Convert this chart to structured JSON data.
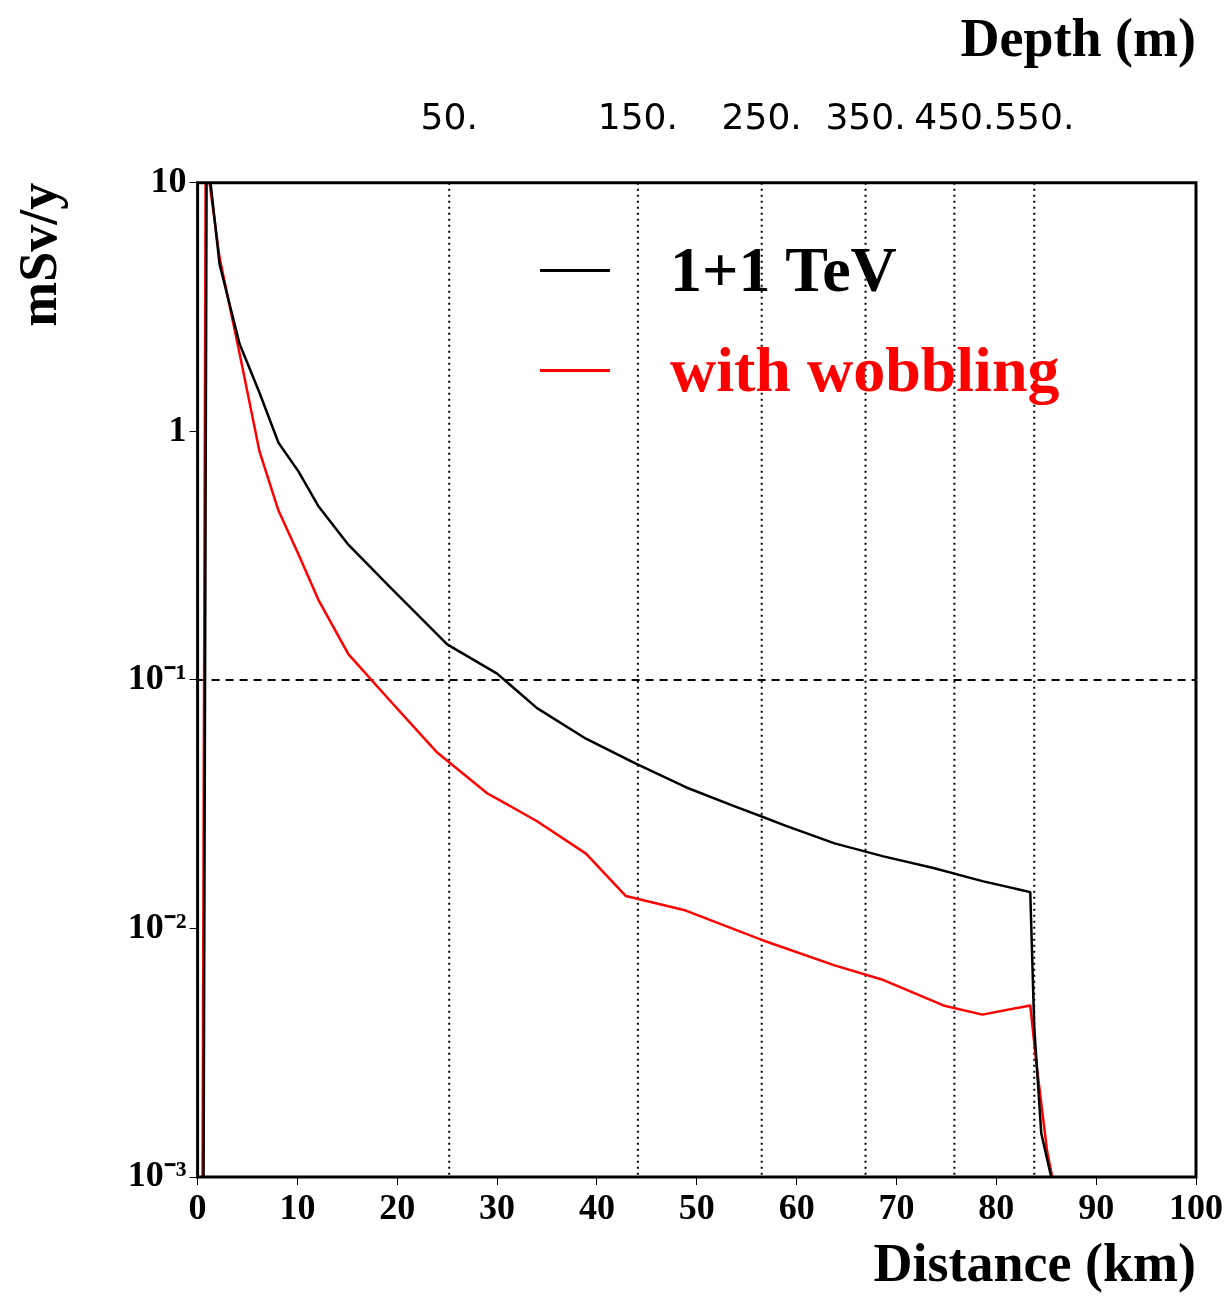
{
  "chart_data": {
    "type": "line",
    "xlabel": "Distance (km)",
    "ylabel": "mSv/y",
    "x2label": "Depth (m)",
    "log": "y",
    "grid": false,
    "legend": "top right",
    "line_style": "solid",
    "marker": "none",
    "xlim": [
      0,
      100
    ],
    "xticks": [
      0,
      10,
      20,
      30,
      40,
      50,
      60,
      70,
      80,
      90,
      100
    ],
    "ylim": [
      0.001,
      10
    ],
    "yticks": [
      {
        "value": 10,
        "label": "10"
      },
      {
        "value": 1,
        "label": "1"
      },
      {
        "value": 0.1,
        "label": "10⁻¹"
      },
      {
        "value": 0.01,
        "label": "10⁻²"
      },
      {
        "value": 0.001,
        "label": "10⁻³"
      }
    ],
    "ref_lines": [
      {
        "axis": "y",
        "value": 0.1,
        "color": "#000000",
        "line_style": "dashed"
      },
      {
        "axis": "x",
        "value": 25.2,
        "color": "#000000",
        "line_style": "dotted"
      },
      {
        "axis": "x",
        "value": 44.1,
        "color": "#000000",
        "line_style": "dotted"
      },
      {
        "axis": "x",
        "value": 56.5,
        "color": "#000000",
        "line_style": "dotted"
      },
      {
        "axis": "x",
        "value": 66.9,
        "color": "#000000",
        "line_style": "dotted"
      },
      {
        "axis": "x",
        "value": 75.8,
        "color": "#000000",
        "line_style": "dotted"
      },
      {
        "axis": "x",
        "value": 83.8,
        "color": "#000000",
        "line_style": "dotted"
      }
    ],
    "annotations": [
      "50.",
      "150.",
      "250.",
      "350.",
      "450.",
      "550."
    ],
    "series": [
      {
        "name": "1+1 TeV",
        "color": "#000000",
        "x": [
          0.6,
          0.9,
          1.3,
          2.2,
          4.2,
          6.2,
          8.1,
          10.1,
          12.1,
          15.1,
          19.1,
          25,
          30,
          34,
          38.9,
          43.9,
          48.9,
          53.8,
          58.8,
          63.8,
          68.7,
          73.7,
          78.6,
          83.4,
          83.8,
          84.5,
          85.5
        ],
        "values": [
          0.001,
          10,
          10,
          4.7,
          2.25,
          1.43,
          0.9,
          0.69,
          0.5,
          0.35,
          0.24,
          0.139,
          0.106,
          0.077,
          0.058,
          0.046,
          0.037,
          0.031,
          0.026,
          0.022,
          0.0195,
          0.0175,
          0.0155,
          0.014,
          0.004,
          0.0015,
          0.001
        ]
      },
      {
        "name": "with wobbling",
        "color": "#ff0000",
        "x": [
          0.5,
          0.8,
          1.2,
          2.2,
          4.2,
          6.2,
          8.1,
          10.1,
          12.1,
          15.1,
          19.1,
          24,
          29,
          34,
          38.9,
          42.9,
          48.9,
          56.8,
          63.8,
          68.7,
          74.7,
          78.6,
          83.4,
          84,
          85.1,
          85.6
        ],
        "values": [
          0.001,
          10,
          10,
          5,
          2.06,
          0.83,
          0.48,
          0.32,
          0.21,
          0.127,
          0.084,
          0.051,
          0.035,
          0.027,
          0.02,
          0.0135,
          0.0118,
          0.0089,
          0.0071,
          0.0062,
          0.0049,
          0.0045,
          0.0049,
          0.0029,
          0.00126,
          0.001
        ]
      }
    ]
  }
}
